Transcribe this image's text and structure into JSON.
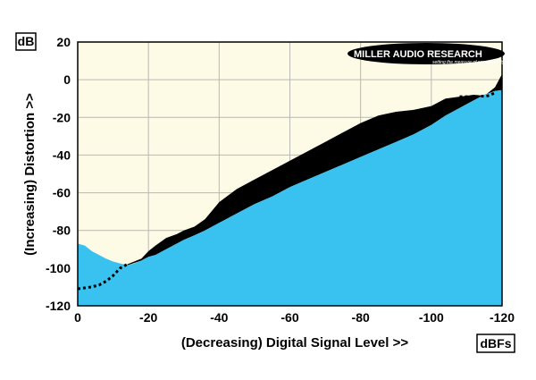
{
  "colors": {
    "background": "#fdfae6",
    "grid": "#b8b8b8",
    "noise_area": "#39c2ef",
    "distortion_band": "#000000",
    "frame": "#000000"
  },
  "branding": {
    "logo_text": "MILLER AUDIO RESEARCH",
    "tagline": "setting the measure of sound quality"
  },
  "chart_data": {
    "type": "area",
    "xlabel": "(Decreasing) Digital Signal Level >>",
    "ylabel": "(Increasing) Distortion >>",
    "y_unit": "dB",
    "x_unit": "dBFs",
    "xlim": [
      0,
      -120
    ],
    "ylim": [
      -120,
      20
    ],
    "x_ticks": [
      "0",
      "-20",
      "-40",
      "-60",
      "-80",
      "-100",
      "-120"
    ],
    "y_ticks": [
      "20",
      "0",
      "-20",
      "-40",
      "-60",
      "-80",
      "-100",
      "-120"
    ],
    "grid": true,
    "series": [
      {
        "style": "filled-area",
        "x": [
          0,
          -2,
          -4,
          -6,
          -8,
          -10,
          -12,
          -14,
          -16,
          -18,
          -20,
          -22,
          -25,
          -30,
          -35,
          -40,
          -45,
          -50,
          -55,
          -60,
          -65,
          -70,
          -75,
          -80,
          -85,
          -90,
          -95,
          -100,
          -104,
          -108,
          -112,
          -115,
          -118,
          -120
        ],
        "y": [
          -87,
          -88,
          -91,
          -93,
          -95,
          -96.5,
          -97.5,
          -98.5,
          -97.5,
          -96,
          -94,
          -93,
          -90,
          -85,
          -81,
          -76,
          -71,
          -66,
          -62,
          -57,
          -53,
          -49,
          -45,
          -41,
          -37,
          -33,
          -29,
          -24,
          -19,
          -15,
          -11,
          -8,
          -6,
          -5.5
        ]
      },
      {
        "style": "black-band-top",
        "x": [
          -14,
          -18,
          -20,
          -22,
          -25,
          -28,
          -30,
          -33,
          -36,
          -40,
          -45,
          -50,
          -55,
          -60,
          -65,
          -70,
          -75,
          -80,
          -85,
          -90,
          -95,
          -100,
          -104,
          -108,
          -112,
          -115,
          -118,
          -120
        ],
        "y": [
          -98,
          -95,
          -91,
          -88,
          -84,
          -82,
          -80,
          -78,
          -74,
          -65,
          -58,
          -53,
          -48,
          -43,
          -38,
          -33,
          -28,
          -23,
          -19,
          -17,
          -16,
          -14,
          -10,
          -9,
          -8,
          -8.5,
          -4,
          3
        ]
      },
      {
        "style": "dashed-line",
        "x": [
          0,
          -2,
          -4,
          -6,
          -8,
          -10,
          -12,
          -14,
          -108,
          -110,
          -112,
          -114,
          -116,
          -118
        ],
        "y": [
          -111,
          -110.5,
          -110,
          -109,
          -107,
          -104,
          -100,
          -98,
          -9,
          -9,
          -9,
          -8.8,
          -8.5,
          -7
        ]
      }
    ]
  }
}
